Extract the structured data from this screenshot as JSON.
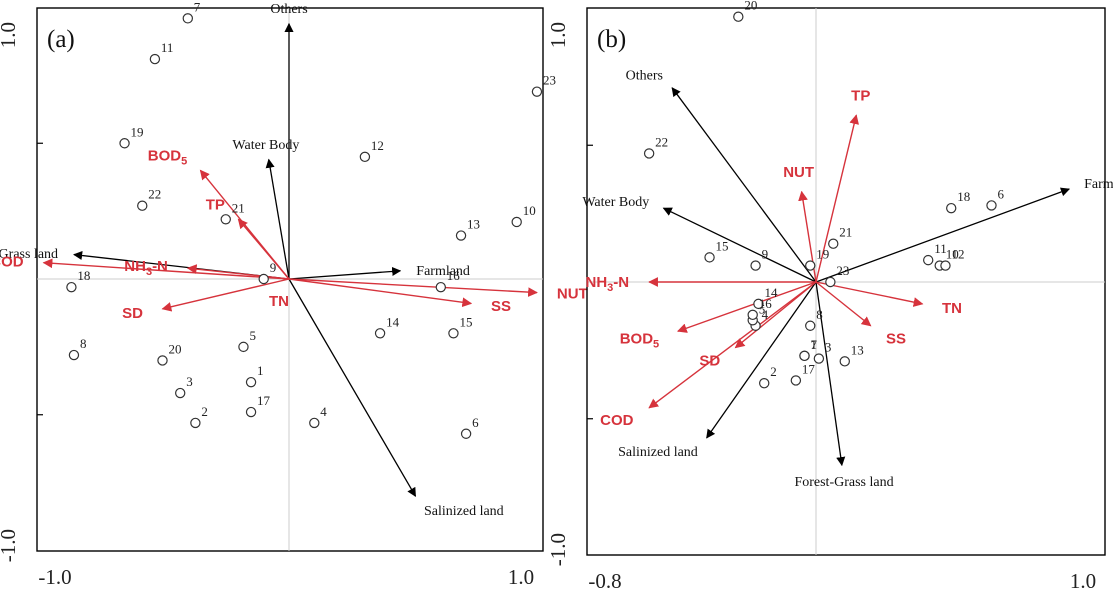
{
  "chart_data": [
    {
      "type": "scatter",
      "panel_label": "(a)",
      "xlim": [
        -1.0,
        1.0
      ],
      "ylim": [
        -1.0,
        1.0
      ],
      "x_tick_labels": [
        "-1.0",
        "1.0"
      ],
      "y_tick_labels": [
        "1.0",
        "-1.0"
      ],
      "colors": {
        "env": "#000000",
        "water_quality": "#d6333c",
        "site": "#333333",
        "crosshair": "#cccccc"
      },
      "sites": [
        {
          "label": "1",
          "x": -0.15,
          "y": -0.38
        },
        {
          "label": "2",
          "x": -0.37,
          "y": -0.53
        },
        {
          "label": "3",
          "x": -0.43,
          "y": -0.42
        },
        {
          "label": "4",
          "x": 0.1,
          "y": -0.53
        },
        {
          "label": "5",
          "x": -0.18,
          "y": -0.25
        },
        {
          "label": "6",
          "x": 0.7,
          "y": -0.57
        },
        {
          "label": "7",
          "x": -0.4,
          "y": 0.96
        },
        {
          "label": "8",
          "x": -0.85,
          "y": -0.28
        },
        {
          "label": "9",
          "x": -0.1,
          "y": 0.0
        },
        {
          "label": "10",
          "x": 0.9,
          "y": 0.21
        },
        {
          "label": "11",
          "x": -0.53,
          "y": 0.81
        },
        {
          "label": "12",
          "x": 0.3,
          "y": 0.45
        },
        {
          "label": "13",
          "x": 0.68,
          "y": 0.16
        },
        {
          "label": "14",
          "x": 0.36,
          "y": -0.2
        },
        {
          "label": "15",
          "x": 0.65,
          "y": -0.2
        },
        {
          "label": "16",
          "x": 0.6,
          "y": -0.03
        },
        {
          "label": "17",
          "x": -0.15,
          "y": -0.49
        },
        {
          "label": "18",
          "x": -0.86,
          "y": -0.03
        },
        {
          "label": "19",
          "x": -0.65,
          "y": 0.5
        },
        {
          "label": "20",
          "x": -0.5,
          "y": -0.3
        },
        {
          "label": "21",
          "x": -0.25,
          "y": 0.22
        },
        {
          "label": "22",
          "x": -0.58,
          "y": 0.27
        },
        {
          "label": "23",
          "x": 0.98,
          "y": 0.69
        }
      ],
      "env_vectors": [
        {
          "name": "Others",
          "x": 0.0,
          "y": 0.94
        },
        {
          "name": "Water Body",
          "x": -0.08,
          "y": 0.44
        },
        {
          "name": "Forest-Grass land",
          "x": -0.85,
          "y": 0.09
        },
        {
          "name": "Farmland",
          "x": 0.44,
          "y": 0.03
        },
        {
          "name": "Salinized land",
          "x": 0.5,
          "y": -0.8
        }
      ],
      "wq_vectors": [
        {
          "name": "BOD",
          "sub": "5",
          "x": -0.35,
          "y": 0.4
        },
        {
          "name": "TP",
          "x": -0.2,
          "y": 0.22
        },
        {
          "name": "NH",
          "sub": "3",
          "name_tail": "-N",
          "x": -0.4,
          "y": 0.04
        },
        {
          "name": "COD",
          "x": -0.97,
          "y": 0.06
        },
        {
          "name": "SD",
          "x": -0.5,
          "y": -0.11
        },
        {
          "name": "TN",
          "x": 0.0,
          "y": 0.0
        },
        {
          "name": "SS",
          "x": 0.72,
          "y": -0.09
        },
        {
          "name": "NUT",
          "x": 0.98,
          "y": -0.05
        }
      ]
    },
    {
      "type": "scatter",
      "panel_label": "(b)",
      "xlim": [
        -0.8,
        1.0
      ],
      "ylim": [
        -1.0,
        1.0
      ],
      "x_tick_labels": [
        "-0.8",
        "1.0"
      ],
      "y_tick_labels": [
        "1.0",
        "-1.0"
      ],
      "colors": {
        "env": "#000000",
        "water_quality": "#d6333c",
        "site": "#333333",
        "crosshair": "#cccccc"
      },
      "sites": [
        {
          "label": "1",
          "x": -0.04,
          "y": -0.27
        },
        {
          "label": "2",
          "x": -0.18,
          "y": -0.37
        },
        {
          "label": "3",
          "x": 0.01,
          "y": -0.28
        },
        {
          "label": "4",
          "x": -0.21,
          "y": -0.16
        },
        {
          "label": "5",
          "x": -0.22,
          "y": -0.14
        },
        {
          "label": "6",
          "x": 0.61,
          "y": 0.28
        },
        {
          "label": "7",
          "x": -0.04,
          "y": -0.27
        },
        {
          "label": "8",
          "x": -0.02,
          "y": -0.16
        },
        {
          "label": "9",
          "x": -0.21,
          "y": 0.06
        },
        {
          "label": "10",
          "x": 0.43,
          "y": 0.06
        },
        {
          "label": "11",
          "x": 0.39,
          "y": 0.08
        },
        {
          "label": "12",
          "x": 0.45,
          "y": 0.06
        },
        {
          "label": "13",
          "x": 0.1,
          "y": -0.29
        },
        {
          "label": "14",
          "x": -0.2,
          "y": -0.08
        },
        {
          "label": "15",
          "x": -0.37,
          "y": 0.09
        },
        {
          "label": "16",
          "x": -0.22,
          "y": -0.12
        },
        {
          "label": "17",
          "x": -0.07,
          "y": -0.36
        },
        {
          "label": "18",
          "x": 0.47,
          "y": 0.27
        },
        {
          "label": "19",
          "x": -0.02,
          "y": 0.06
        },
        {
          "label": "20",
          "x": -0.27,
          "y": 0.97
        },
        {
          "label": "21",
          "x": 0.06,
          "y": 0.14
        },
        {
          "label": "22",
          "x": -0.58,
          "y": 0.47
        },
        {
          "label": "23",
          "x": 0.05,
          "y": 0.0
        }
      ],
      "env_vectors": [
        {
          "name": "Others",
          "x": -0.5,
          "y": 0.71
        },
        {
          "name": "Water Body",
          "x": -0.53,
          "y": 0.27
        },
        {
          "name": "Farmland",
          "x": 0.88,
          "y": 0.34
        },
        {
          "name": "Salinized land",
          "x": -0.38,
          "y": -0.57
        },
        {
          "name": "Forest-Grass land",
          "x": 0.09,
          "y": -0.67
        }
      ],
      "wq_vectors": [
        {
          "name": "TP",
          "x": 0.14,
          "y": 0.61
        },
        {
          "name": "NUT",
          "x": -0.05,
          "y": 0.33
        },
        {
          "name": "NH",
          "sub": "3",
          "name_tail": "-N",
          "x": -0.58,
          "y": 0.0
        },
        {
          "name": "BOD",
          "sub": "5",
          "x": -0.48,
          "y": -0.18
        },
        {
          "name": "SD",
          "x": -0.28,
          "y": -0.24
        },
        {
          "name": "COD",
          "x": -0.58,
          "y": -0.46
        },
        {
          "name": "SS",
          "x": 0.19,
          "y": -0.16
        },
        {
          "name": "TN",
          "x": 0.37,
          "y": -0.08
        }
      ]
    }
  ]
}
